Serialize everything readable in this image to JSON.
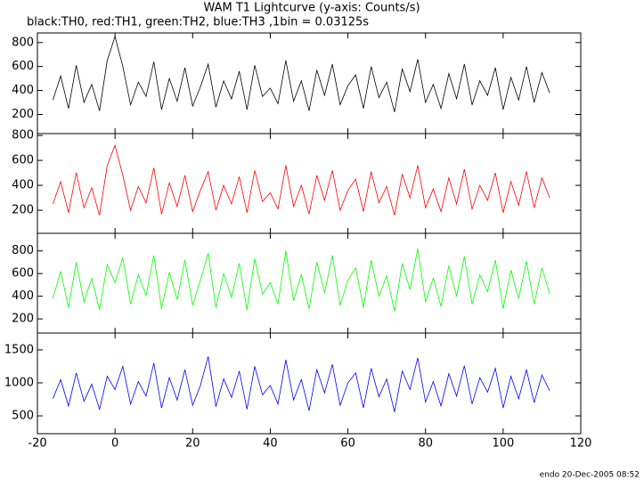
{
  "chart_data": [
    {
      "type": "line",
      "title": "WAM T1 Lightcurve (y-axis: Counts/s)",
      "subtitle": "black:TH0, red:TH1, green:TH2, blue:TH3 ,1bin = 0.03125s",
      "x": [
        -16,
        -14,
        -12,
        -10,
        -8,
        -6,
        -4,
        -2,
        0,
        2,
        4,
        6,
        8,
        10,
        12,
        14,
        16,
        18,
        20,
        22,
        24,
        26,
        28,
        30,
        32,
        34,
        36,
        38,
        40,
        42,
        44,
        46,
        48,
        50,
        52,
        54,
        56,
        58,
        60,
        62,
        64,
        66,
        68,
        70,
        72,
        74,
        76,
        78,
        80,
        82,
        84,
        86,
        88,
        90,
        92,
        94,
        96,
        98,
        100,
        102,
        104,
        106,
        108,
        110,
        112
      ],
      "xlim": [
        -20,
        120
      ],
      "ylim": [
        40,
        880
      ],
      "yticks": [
        200,
        400,
        600,
        800
      ],
      "series": [
        {
          "color": "#000000",
          "values": [
            320,
            520,
            250,
            610,
            300,
            450,
            230,
            650,
            850,
            600,
            280,
            470,
            350,
            640,
            240,
            500,
            310,
            590,
            270,
            430,
            620,
            260,
            480,
            330,
            560,
            240,
            610,
            350,
            420,
            290,
            650,
            310,
            480,
            230,
            570,
            360,
            620,
            280,
            440,
            530,
            250,
            600,
            340,
            470,
            220,
            580,
            390,
            660,
            300,
            450,
            250,
            540,
            330,
            620,
            280,
            480,
            360,
            590,
            240,
            510,
            320,
            600,
            300,
            550,
            380
          ]
        }
      ]
    },
    {
      "type": "line",
      "x": [
        -16,
        -14,
        -12,
        -10,
        -8,
        -6,
        -4,
        -2,
        0,
        2,
        4,
        6,
        8,
        10,
        12,
        14,
        16,
        18,
        20,
        22,
        24,
        26,
        28,
        30,
        32,
        34,
        36,
        38,
        40,
        42,
        44,
        46,
        48,
        50,
        52,
        54,
        56,
        58,
        60,
        62,
        64,
        66,
        68,
        70,
        72,
        74,
        76,
        78,
        80,
        82,
        84,
        86,
        88,
        90,
        92,
        94,
        96,
        98,
        100,
        102,
        104,
        106,
        108,
        110,
        112
      ],
      "xlim": [
        -20,
        120
      ],
      "ylim": [
        15,
        815
      ],
      "yticks": [
        200,
        400,
        600,
        800
      ],
      "series": [
        {
          "color": "#ff0000",
          "values": [
            250,
            430,
            180,
            500,
            220,
            380,
            160,
            560,
            720,
            480,
            200,
            390,
            260,
            540,
            170,
            420,
            230,
            480,
            190,
            360,
            510,
            200,
            400,
            250,
            470,
            180,
            520,
            270,
            340,
            210,
            560,
            230,
            400,
            170,
            480,
            280,
            520,
            200,
            360,
            450,
            190,
            510,
            260,
            390,
            160,
            490,
            300,
            560,
            220,
            370,
            190,
            460,
            250,
            530,
            210,
            400,
            280,
            500,
            180,
            430,
            240,
            510,
            220,
            460,
            300
          ]
        }
      ]
    },
    {
      "type": "line",
      "x": [
        -16,
        -14,
        -12,
        -10,
        -8,
        -6,
        -4,
        -2,
        0,
        2,
        4,
        6,
        8,
        10,
        12,
        14,
        16,
        18,
        20,
        22,
        24,
        26,
        28,
        30,
        32,
        34,
        36,
        38,
        40,
        42,
        44,
        46,
        48,
        50,
        52,
        54,
        56,
        58,
        60,
        62,
        64,
        66,
        68,
        70,
        72,
        74,
        76,
        78,
        80,
        82,
        84,
        86,
        88,
        90,
        92,
        94,
        96,
        98,
        100,
        102,
        104,
        106,
        108,
        110,
        112
      ],
      "xlim": [
        -20,
        120
      ],
      "ylim": [
        75,
        955
      ],
      "yticks": [
        200,
        400,
        600,
        800
      ],
      "series": [
        {
          "color": "#00ff00",
          "values": [
            380,
            620,
            300,
            700,
            350,
            560,
            280,
            680,
            520,
            740,
            330,
            590,
            410,
            760,
            290,
            610,
            370,
            720,
            320,
            540,
            780,
            300,
            600,
            390,
            690,
            280,
            730,
            420,
            520,
            330,
            800,
            360,
            590,
            290,
            700,
            430,
            760,
            320,
            540,
            650,
            300,
            720,
            400,
            580,
            270,
            690,
            460,
            820,
            350,
            560,
            310,
            670,
            400,
            750,
            330,
            590,
            440,
            720,
            290,
            630,
            380,
            710,
            330,
            650,
            420
          ]
        }
      ]
    },
    {
      "type": "line",
      "x": [
        -16,
        -14,
        -12,
        -10,
        -8,
        -6,
        -4,
        -2,
        0,
        2,
        4,
        6,
        8,
        10,
        12,
        14,
        16,
        18,
        20,
        22,
        24,
        26,
        28,
        30,
        32,
        34,
        36,
        38,
        40,
        42,
        44,
        46,
        48,
        50,
        52,
        54,
        56,
        58,
        60,
        62,
        64,
        66,
        68,
        70,
        72,
        74,
        76,
        78,
        80,
        82,
        84,
        86,
        88,
        90,
        92,
        94,
        96,
        98,
        100,
        102,
        104,
        106,
        108,
        110,
        112
      ],
      "xlim": [
        -20,
        120
      ],
      "xticks": [
        -20,
        0,
        20,
        40,
        60,
        80,
        100,
        120
      ],
      "ylim": [
        230,
        1755
      ],
      "yticks": [
        500,
        1000,
        1500
      ],
      "series": [
        {
          "color": "#0000ff",
          "values": [
            760,
            1050,
            650,
            1150,
            720,
            980,
            600,
            1100,
            900,
            1250,
            680,
            1020,
            800,
            1300,
            620,
            1080,
            740,
            1200,
            660,
            960,
            1400,
            640,
            1060,
            780,
            1180,
            600,
            1250,
            820,
            960,
            680,
            1350,
            740,
            1050,
            580,
            1200,
            850,
            1280,
            660,
            1000,
            1150,
            620,
            1220,
            790,
            1060,
            560,
            1180,
            900,
            1380,
            710,
            1020,
            650,
            1140,
            800,
            1260,
            680,
            1080,
            860,
            1220,
            620,
            1100,
            760,
            1200,
            700,
            1120,
            880
          ]
        }
      ]
    }
  ],
  "footer": "endo 20-Dec-2005 08:52"
}
